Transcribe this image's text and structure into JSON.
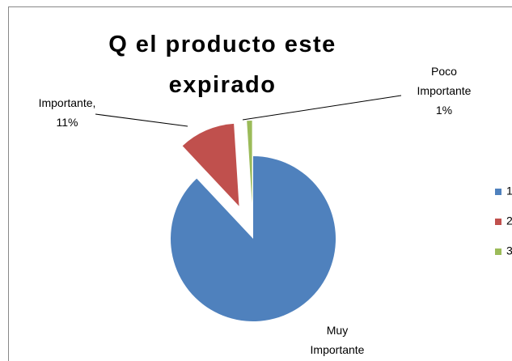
{
  "chart_data": {
    "type": "pie",
    "title": "Q el producto este expirado",
    "categories": [
      "Muy Importante",
      "Importante",
      "Poco Importante"
    ],
    "values": [
      88,
      11,
      1
    ],
    "value_labels": [
      null,
      "11%",
      "1%"
    ],
    "label_separator": ",",
    "colors": [
      "#4f81bd",
      "#c0504d",
      "#9bbb59"
    ],
    "exploded": [
      false,
      true,
      true
    ],
    "legend": [
      "1",
      "2",
      "3"
    ],
    "legend_position": "right"
  }
}
